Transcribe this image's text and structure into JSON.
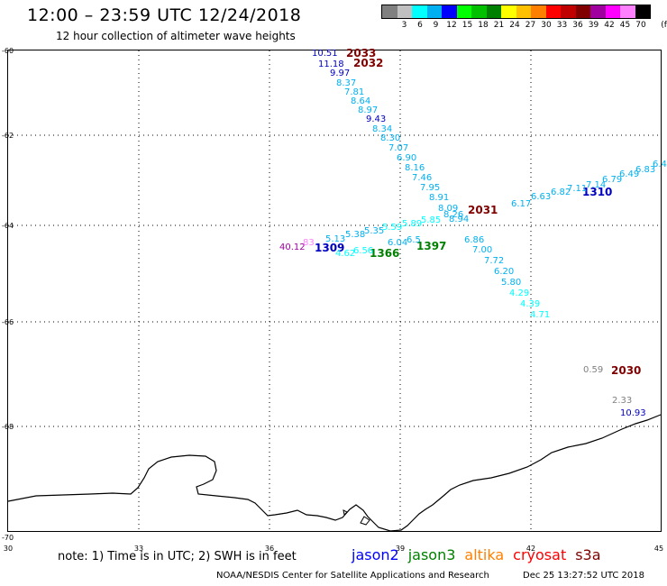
{
  "header": {
    "title": "12:00 – 23:59 UTC 12/24/2018",
    "subtitle": "12 hour collection of altimeter wave heights"
  },
  "legend": {
    "unit": "(ft)",
    "bins": [
      {
        "label": "",
        "color": "#808080"
      },
      {
        "label": "3",
        "color": "#c0c0c0"
      },
      {
        "label": "6",
        "color": "#00ffff"
      },
      {
        "label": "9",
        "color": "#00b0f0"
      },
      {
        "label": "12",
        "color": "#0000ff"
      },
      {
        "label": "15",
        "color": "#00ff00"
      },
      {
        "label": "18",
        "color": "#00c000"
      },
      {
        "label": "21",
        "color": "#008000"
      },
      {
        "label": "24",
        "color": "#ffff00"
      },
      {
        "label": "27",
        "color": "#ffc000"
      },
      {
        "label": "30",
        "color": "#ff8000"
      },
      {
        "label": "33",
        "color": "#ff0000"
      },
      {
        "label": "36",
        "color": "#c00000"
      },
      {
        "label": "39",
        "color": "#800000"
      },
      {
        "label": "42",
        "color": "#a000a0"
      },
      {
        "label": "45",
        "color": "#ff00ff"
      },
      {
        "label": "70",
        "color": "#ff80ff"
      },
      {
        "label": "",
        "color": "#000000"
      }
    ]
  },
  "axes": {
    "lat_labels": [
      "-60",
      "-62",
      "-64",
      "-66",
      "-68",
      "-70"
    ],
    "lon_labels": [
      "30",
      "33",
      "36",
      "39",
      "42",
      "45"
    ]
  },
  "passes": [
    {
      "id": "2033",
      "color": "#800000",
      "values": [
        "10.51",
        "11.18",
        "9.97",
        "8.37",
        "7.81",
        "8.64",
        "8.97",
        "9.43",
        "8.34",
        "8.30",
        "7.07",
        "6.90",
        "8.16",
        "7.46",
        "7.95",
        "8.91",
        "8.09",
        "8.26",
        "8.94",
        "6.86",
        "7.00",
        "7.72",
        "6.20",
        "5.80",
        "4.29",
        "4.39",
        "4.71"
      ]
    },
    {
      "id": "2032",
      "color": "#800000",
      "values": []
    },
    {
      "id": "2031",
      "color": "#800000",
      "values": []
    },
    {
      "id": "2030",
      "color": "#800000",
      "values": [
        "0.59"
      ]
    },
    {
      "id": "1310",
      "color": "#0000c0",
      "values": [
        "6.17",
        "6.63",
        "6.82",
        "7.11",
        "7.14",
        "6.79",
        "6.49",
        "6.83",
        "6.4"
      ]
    },
    {
      "id": "1309",
      "color": "#0000c0",
      "values": [
        "40.12",
        "83",
        "5.13",
        "5.38",
        "5.35",
        "5.59",
        "5.89",
        "5.85"
      ]
    },
    {
      "id": "1366",
      "color": "#008000",
      "values": [
        "4.62",
        "6.56"
      ]
    },
    {
      "id": "1397",
      "color": "#008000",
      "values": [
        "6.04",
        "6.5"
      ]
    },
    {
      "id": "extra-values",
      "color": "#000080",
      "values": [
        "2.33",
        "10.93"
      ]
    }
  ],
  "footer": {
    "note": "note: 1) Time is in UTC; 2) SWH is in feet",
    "missions": [
      {
        "name": "jason2",
        "color": "#0000ff"
      },
      {
        "name": "jason3",
        "color": "#008000"
      },
      {
        "name": "altika",
        "color": "#ff8000"
      },
      {
        "name": "cryosat",
        "color": "#ff0000"
      },
      {
        "name": "s3a",
        "color": "#800000"
      }
    ],
    "credit": "NOAA/NESDIS Center for Satellite Applications and Research",
    "timestamp": "Dec 25 13:27:52 UTC 2018"
  }
}
